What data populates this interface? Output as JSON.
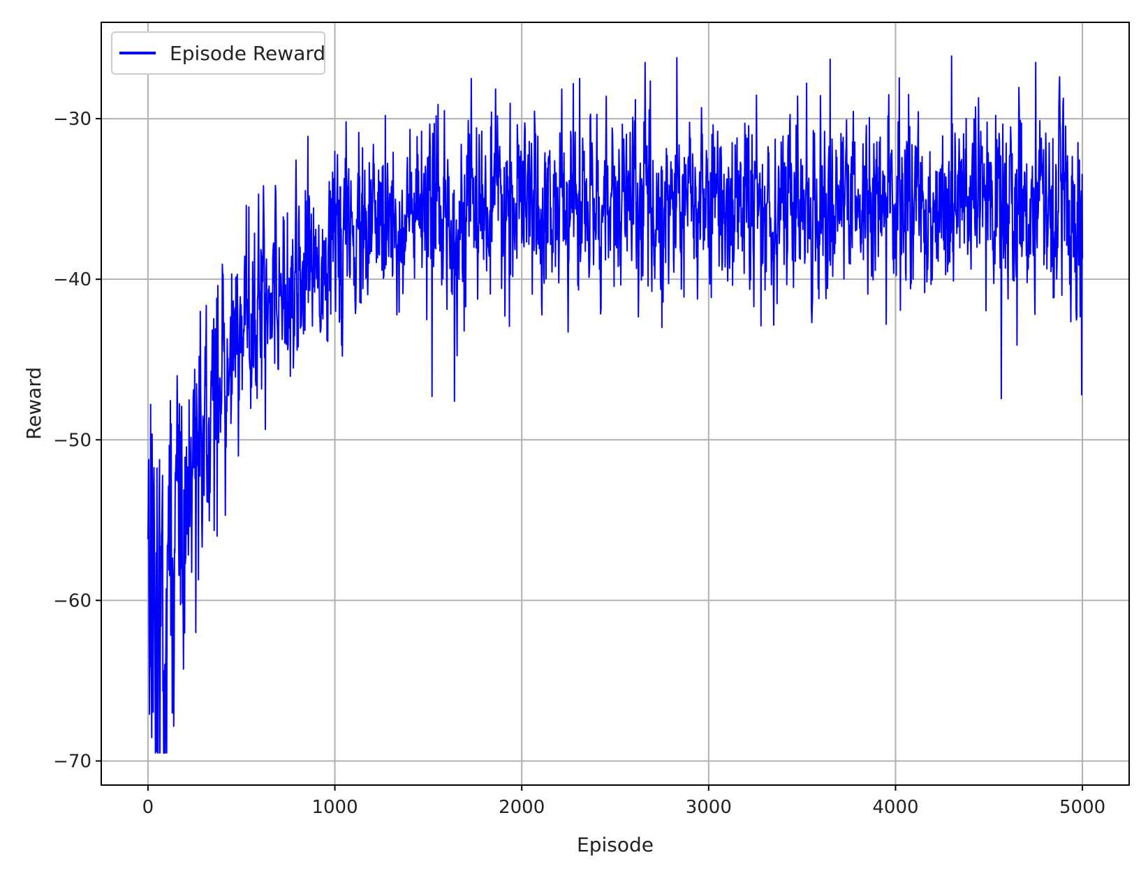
{
  "chart_data": {
    "type": "line",
    "title": "",
    "xlabel": "Episode",
    "ylabel": "Reward",
    "xlim": [
      -250,
      5250
    ],
    "ylim": [
      -71.5,
      -24
    ],
    "xticks": [
      0,
      1000,
      2000,
      3000,
      4000,
      5000
    ],
    "yticks": [
      -70,
      -60,
      -50,
      -40,
      -30
    ],
    "xtick_labels": [
      "0",
      "1000",
      "2000",
      "3000",
      "4000",
      "5000"
    ],
    "ytick_labels": [
      "−70",
      "−60",
      "−50",
      "−40",
      "−30"
    ],
    "grid": true,
    "legend_position": "top-left",
    "series": [
      {
        "name": "Episode Reward",
        "color": "#0000ff",
        "trend_x": [
          0,
          50,
          100,
          150,
          200,
          250,
          300,
          350,
          400,
          450,
          500,
          600,
          700,
          800,
          900,
          1000,
          1200,
          1400,
          1600,
          1800,
          2000,
          2500,
          3000,
          3500,
          4000,
          4500,
          4900,
          5000
        ],
        "trend_y": [
          -58,
          -61,
          -59,
          -56,
          -54,
          -52,
          -49.5,
          -48,
          -46,
          -44.5,
          -43,
          -41.5,
          -40.5,
          -39.5,
          -38.7,
          -38,
          -37,
          -36.4,
          -36,
          -35.8,
          -35.6,
          -35.4,
          -35.3,
          -35.3,
          -35.3,
          -35.3,
          -35.3,
          -38
        ],
        "spread_y": [
          6,
          6,
          5.5,
          5,
          4.5,
          4,
          3.6,
          3.3,
          3,
          2.9,
          2.8,
          2.7,
          2.6,
          2.5,
          2.5,
          2.5,
          2.5,
          2.5,
          2.5,
          2.5,
          2.5,
          2.5,
          2.5,
          2.5,
          2.5,
          2.5,
          2.5,
          3
        ],
        "min_y": -69.5,
        "max_y": -26.1,
        "low_spikes_x": [
          45,
          130,
          255,
          370,
          1520,
          1640,
          2750,
          3280,
          3950,
          4650,
          4995
        ],
        "low_spikes_y": [
          -69.4,
          -67,
          -62,
          -56,
          -47.3,
          -47.6,
          -43,
          -42.9,
          -42.8,
          -44.1,
          -47.2
        ],
        "high_spikes_x": [
          280,
          540,
          1270,
          1730,
          2310,
          2660,
          2830,
          3650,
          4070,
          4300,
          4750
        ],
        "high_spikes_y": [
          -42,
          -35.5,
          -29.8,
          -27.5,
          -27.5,
          -26.5,
          -26.2,
          -26.3,
          -28.5,
          -26.1,
          -26.5
        ]
      }
    ]
  }
}
